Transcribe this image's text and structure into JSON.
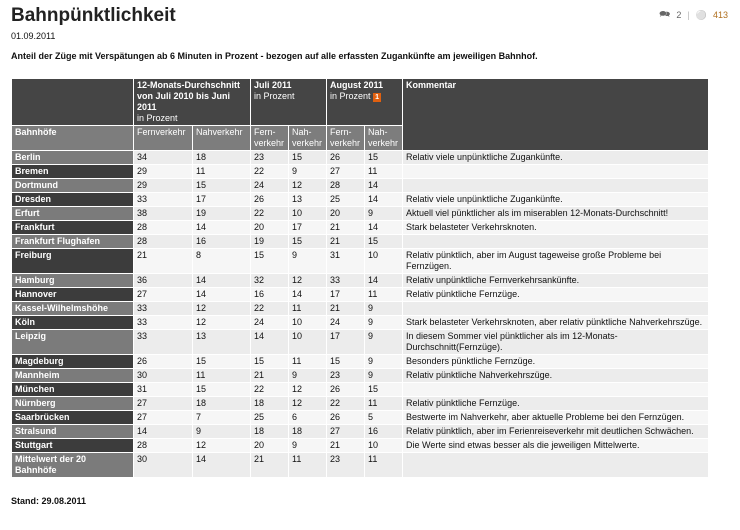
{
  "header": {
    "title": "Bahnpünktlichkeit",
    "date": "01.09.2011",
    "subtitle": "Anteil der Züge mit Verspätungen ab 6 Minuten in Prozent - bezogen auf alle erfassten Zugankünfte am jeweiligen Bahnhof.",
    "comments_count": "2",
    "views_count": "413"
  },
  "table": {
    "group_headers": {
      "avg": "12-Monats-Durchschnitt von Juli 2010 bis Juni 2011",
      "avg_unit": "in Prozent",
      "jul": "Juli 2011",
      "jul_unit": "in Prozent",
      "aug": "August 2011",
      "aug_unit": "in Prozent",
      "aug_note": "1",
      "comment": "Kommentar"
    },
    "sub_headers": {
      "station": "Bahnhöfe",
      "fern": "Fernverkehr",
      "nah": "Nahverkehr",
      "fern_short": "Fern-verkehr",
      "nah_short": "Nah-verkehr"
    },
    "rows": [
      [
        "Berlin",
        "34",
        "18",
        "23",
        "15",
        "26",
        "15",
        "Relativ viele unpünktliche Zugankünfte."
      ],
      [
        "Bremen",
        "29",
        "11",
        "22",
        "9",
        "27",
        "11",
        ""
      ],
      [
        "Dortmund",
        "29",
        "15",
        "24",
        "12",
        "28",
        "14",
        ""
      ],
      [
        "Dresden",
        "33",
        "17",
        "26",
        "13",
        "25",
        "14",
        "Relativ viele unpünktliche Zugankünfte."
      ],
      [
        "Erfurt",
        "38",
        "19",
        "22",
        "10",
        "20",
        "9",
        "Aktuell viel pünktlicher als im miserablen 12-Monats-Durchschnitt!"
      ],
      [
        "Frankfurt",
        "28",
        "14",
        "20",
        "17",
        "21",
        "14",
        "Stark belasteter Verkehrsknoten."
      ],
      [
        "Frankfurt Flughafen",
        "28",
        "16",
        "19",
        "15",
        "21",
        "15",
        ""
      ],
      [
        "Freiburg",
        "21",
        "8",
        "15",
        "9",
        "31",
        "10",
        "Relativ pünktlich, aber im August tageweise große Probleme bei Fernzügen."
      ],
      [
        "Hamburg",
        "36",
        "14",
        "32",
        "12",
        "33",
        "14",
        "Relativ unpünktliche Fernverkehrsankünfte."
      ],
      [
        "Hannover",
        "27",
        "14",
        "16",
        "14",
        "17",
        "11",
        "Relativ pünktliche Fernzüge."
      ],
      [
        "Kassel-Wilhelmshöhe",
        "33",
        "12",
        "22",
        "11",
        "21",
        "9",
        ""
      ],
      [
        "Köln",
        "33",
        "12",
        "24",
        "10",
        "24",
        "9",
        "Stark belasteter Verkehrsknoten, aber relativ pünktliche Nahverkehrszüge."
      ],
      [
        "Leipzig",
        "33",
        "13",
        "14",
        "10",
        "17",
        "9",
        "In diesem Sommer viel pünktlicher als im 12-Monats-Durchschnitt(Fernzüge)."
      ],
      [
        "Magdeburg",
        "26",
        "15",
        "15",
        "11",
        "15",
        "9",
        "Besonders pünktliche Fernzüge."
      ],
      [
        "Mannheim",
        "30",
        "11",
        "21",
        "9",
        "23",
        "9",
        "Relativ pünktliche Nahverkehrszüge."
      ],
      [
        "München",
        "31",
        "15",
        "22",
        "12",
        "26",
        "15",
        ""
      ],
      [
        "Nürnberg",
        "27",
        "18",
        "18",
        "12",
        "22",
        "11",
        "Relativ pünktliche Fernzüge."
      ],
      [
        "Saarbrücken",
        "27",
        "7",
        "25",
        "6",
        "26",
        "5",
        "Bestwerte im Nahverkehr, aber aktuelle Probleme bei den Fernzügen."
      ],
      [
        "Stralsund",
        "14",
        "9",
        "18",
        "18",
        "27",
        "16",
        "Relativ pünktlich, aber im Ferienreiseverkehr mit deutlichen Schwächen."
      ],
      [
        "Stuttgart",
        "28",
        "12",
        "20",
        "9",
        "21",
        "10",
        "Die Werte sind etwas besser als die jeweiligen Mittelwerte."
      ],
      [
        "Mittelwert der 20 Bahnhöfe",
        "30",
        "14",
        "21",
        "11",
        "23",
        "11",
        ""
      ]
    ]
  },
  "footer": {
    "stand": "Stand: 29.08.2011"
  }
}
